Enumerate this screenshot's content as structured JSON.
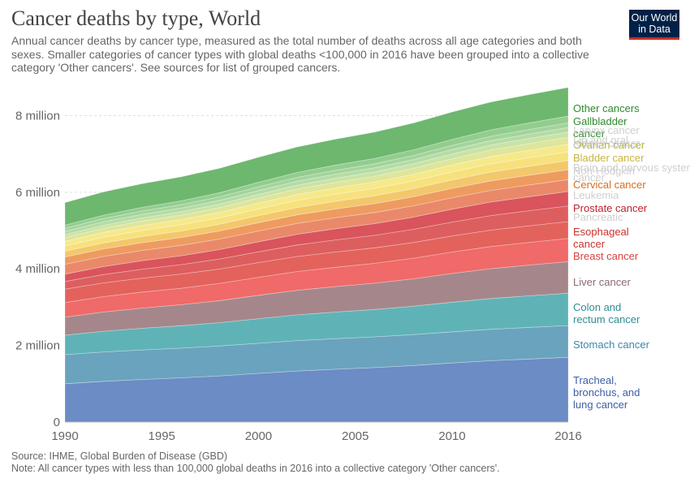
{
  "header": {
    "title": "Cancer deaths by type, World",
    "subtitle": "Annual cancer deaths by cancer type, measured as the total number of deaths across all age categories and both sexes. Smaller categories of cancer types with global deaths <100,000 in 2016 have been grouped into a collective category 'Other cancers'. See sources for list of grouped cancers.",
    "logo_line1": "Our World",
    "logo_line2": "in Data"
  },
  "footer": {
    "source": "Source: IHME, Global Burden of Disease (GBD)",
    "note": "Note: All cancer types with less than 100,000 global deaths in 2016 into a collective category 'Other cancers'."
  },
  "chart_data": {
    "type": "area",
    "stacked": true,
    "x": [
      1990,
      1992,
      1994,
      1996,
      1998,
      2000,
      2002,
      2004,
      2006,
      2008,
      2010,
      2012,
      2014,
      2016
    ],
    "xticks": [
      1990,
      1995,
      2000,
      2005,
      2010,
      2016
    ],
    "ylim": [
      0,
      8900000
    ],
    "yticks": [
      {
        "value": 0,
        "label": "0"
      },
      {
        "value": 2000000,
        "label": "2 million"
      },
      {
        "value": 4000000,
        "label": "4 million"
      },
      {
        "value": 6000000,
        "label": "6 million"
      },
      {
        "value": 8000000,
        "label": "8 million"
      }
    ],
    "grid": "horizontal dashed",
    "legend": "right, labels at series ends",
    "series": [
      {
        "name": "Tracheal, bronchus, and lung cancer",
        "color": "#6b8cc4",
        "label_color": "#3c5fa6",
        "start": 1000000,
        "end": 1700000
      },
      {
        "name": "Stomach cancer",
        "color": "#6aa3bd",
        "label_color": "#3f86a8",
        "start": 760000,
        "end": 830000
      },
      {
        "name": "Colon and rectum cancer",
        "color": "#5fb3b6",
        "label_color": "#2f8f94",
        "start": 510000,
        "end": 850000
      },
      {
        "name": "Liver cancer",
        "color": "#a5878b",
        "label_color": "#8a6a6e",
        "start": 470000,
        "end": 830000
      },
      {
        "name": "Breast cancer",
        "color": "#ef6a68",
        "label_color": "#d9413f",
        "start": 380000,
        "end": 610000
      },
      {
        "name": "Esophageal cancer",
        "color": "#e3625c",
        "label_color": "#c9332d",
        "start": 350000,
        "end": 440000
      },
      {
        "name": "Pancreatic cancer",
        "color": "#dd5e5e",
        "label_color": "#d0d0d0",
        "start": 200000,
        "end": 410000
      },
      {
        "name": "Prostate cancer",
        "color": "#d9545c",
        "label_color": "#c0202f",
        "start": 190000,
        "end": 380000
      },
      {
        "name": "Leukemia",
        "color": "#e9896a",
        "label_color": "#d0d0d0",
        "start": 260000,
        "end": 310000
      },
      {
        "name": "Cervical cancer",
        "color": "#ee9b60",
        "label_color": "#d86f1d",
        "start": 190000,
        "end": 260000
      },
      {
        "name": "Non-Hodgkin lymphoma",
        "color": "#f3c76b",
        "label_color": "#d0d0d0",
        "start": 150000,
        "end": 240000
      },
      {
        "name": "Brain and nervous system cancer",
        "color": "#f7e17d",
        "label_color": "#d0d0d0",
        "start": 140000,
        "end": 230000
      },
      {
        "name": "Bladder cancer",
        "color": "#f6e98a",
        "label_color": "#c9b63b",
        "start": 120000,
        "end": 200000
      },
      {
        "name": "Ovarian cancer",
        "color": "#dfe59a",
        "label_color": "#b8b84a",
        "start": 100000,
        "end": 180000
      },
      {
        "name": "Kidney cancer",
        "color": "#c9e3a6",
        "label_color": "#d0d0d0",
        "start": 70000,
        "end": 140000
      },
      {
        "name": "Lip and oral cavity cancer",
        "color": "#b5dca5",
        "label_color": "#d0d0d0",
        "start": 90000,
        "end": 120000
      },
      {
        "name": "Larynx cancer",
        "color": "#a3d49c",
        "label_color": "#d0d0d0",
        "start": 80000,
        "end": 120000
      },
      {
        "name": "Gallbladder cancer",
        "color": "#93cd8e",
        "label_color": "#2e8a2e",
        "start": 80000,
        "end": 180000
      },
      {
        "name": "Other cancers",
        "color": "#6db76f",
        "label_color": "#2e8a2e",
        "start": 590000,
        "end": 750000
      }
    ],
    "labels": [
      {
        "text": "Other cancers",
        "color": "#2e8a2e"
      },
      {
        "text": "Gallbladder",
        "color": "#2e8a2e"
      },
      {
        "text": "cancer",
        "color": "#2e8a2e"
      },
      {
        "text": "Larynx cancer",
        "color": "#cfcfcf"
      },
      {
        "text": "Lip and oral",
        "color": "#cfcfcf"
      },
      {
        "text": "Ovarian cancer",
        "color": "#b3b33c"
      },
      {
        "text": "Kidney cancer",
        "color": "#cfcfcf"
      },
      {
        "text": "Bladder cancer",
        "color": "#c9b63b"
      },
      {
        "text": "Brain and nervous system",
        "color": "#cfcfcf"
      },
      {
        "text": "Non-Hodgkin",
        "color": "#cfcfcf"
      },
      {
        "text": "cancer",
        "color": "#cfcfcf"
      },
      {
        "text": "Cervical cancer",
        "color": "#d86f1d"
      },
      {
        "text": "Leukemia",
        "color": "#cfcfcf"
      },
      {
        "text": "Prostate cancer",
        "color": "#c0202f"
      },
      {
        "text": "Pancreatic",
        "color": "#cfcfcf"
      },
      {
        "text": "Esophageal",
        "color": "#c9332d"
      },
      {
        "text": "cancer",
        "color": "#c9332d"
      },
      {
        "text": "Breast cancer",
        "color": "#d9413f"
      },
      {
        "text": "Liver cancer",
        "color": "#8a6a6e"
      },
      {
        "text": "Colon and",
        "color": "#2f8f94"
      },
      {
        "text": "rectum cancer",
        "color": "#2f8f94"
      },
      {
        "text": "Stomach cancer",
        "color": "#3f86a8"
      },
      {
        "text": "Tracheal,",
        "color": "#3c5fa6"
      },
      {
        "text": "bronchus, and",
        "color": "#3c5fa6"
      },
      {
        "text": "lung cancer",
        "color": "#3c5fa6"
      }
    ]
  }
}
